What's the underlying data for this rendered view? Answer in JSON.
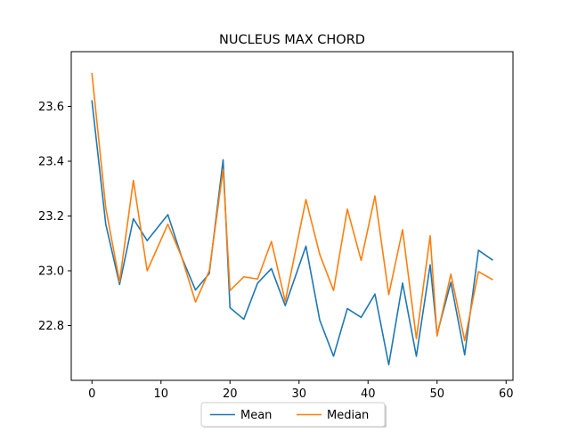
{
  "chart_data": {
    "type": "line",
    "title": "NUCLEUS MAX CHORD",
    "xlabel": "",
    "ylabel": "",
    "xlim": [
      -3,
      61
    ],
    "ylim": [
      22.6,
      23.8
    ],
    "xticks": [
      0,
      10,
      20,
      30,
      40,
      50,
      60
    ],
    "xtick_labels": [
      "0",
      "10",
      "20",
      "30",
      "40",
      "50",
      "60"
    ],
    "yticks": [
      22.8,
      23.0,
      23.2,
      23.4,
      23.6
    ],
    "ytick_labels": [
      "22.8",
      "23.0",
      "23.2",
      "23.4",
      "23.6"
    ],
    "grid": false,
    "legend_position": "bottom-center",
    "series": [
      {
        "name": "Mean",
        "color": "#1f77b4",
        "x": [
          0,
          2,
          4,
          6,
          8,
          11,
          13,
          15,
          17,
          19,
          20,
          22,
          24,
          26,
          28,
          31,
          33,
          35,
          37,
          39,
          41,
          43,
          45,
          47,
          49,
          50,
          52,
          54,
          56,
          58
        ],
        "y": [
          23.62,
          23.17,
          22.95,
          23.19,
          23.11,
          23.205,
          23.05,
          22.93,
          22.99,
          23.405,
          22.865,
          22.823,
          22.955,
          23.008,
          22.873,
          23.09,
          22.82,
          22.688,
          22.862,
          22.83,
          22.915,
          22.657,
          22.955,
          22.688,
          23.022,
          22.768,
          22.958,
          22.693,
          23.075,
          23.04
        ]
      },
      {
        "name": "Median",
        "color": "#ff7f0e",
        "x": [
          0,
          2,
          4,
          6,
          8,
          11,
          13,
          15,
          17,
          19,
          20,
          22,
          24,
          26,
          28,
          31,
          33,
          35,
          37,
          39,
          41,
          43,
          45,
          47,
          49,
          50,
          52,
          54,
          56,
          58
        ],
        "y": [
          23.72,
          23.23,
          22.96,
          23.33,
          23.0,
          23.17,
          23.05,
          22.886,
          23.0,
          23.37,
          22.928,
          22.978,
          22.97,
          23.107,
          22.888,
          23.26,
          23.06,
          22.928,
          23.225,
          23.038,
          23.273,
          22.913,
          23.15,
          22.752,
          23.128,
          22.762,
          22.988,
          22.745,
          22.997,
          22.968
        ]
      }
    ]
  }
}
